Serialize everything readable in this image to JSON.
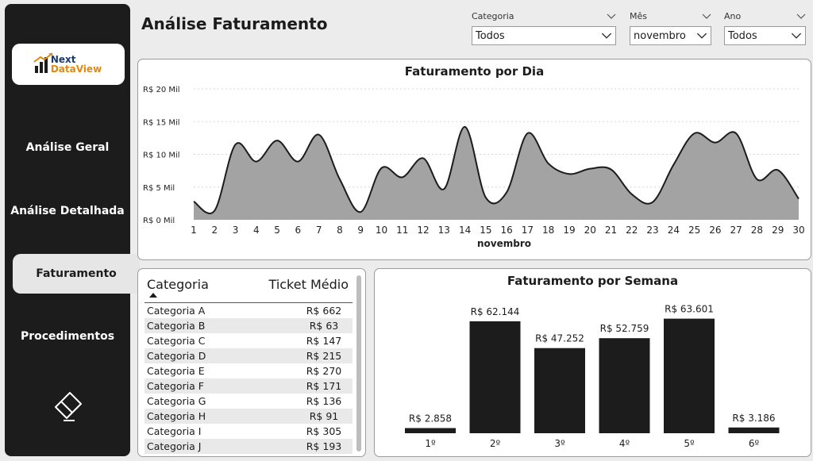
{
  "header": {
    "title": "Análise Faturamento"
  },
  "brand": {
    "line1": "Next",
    "line2": "DataView"
  },
  "sidebar": {
    "items": [
      {
        "label": "Análise Geral",
        "active": false
      },
      {
        "label": "Análise Detalhada",
        "active": false
      },
      {
        "label": "Faturamento",
        "active": true
      },
      {
        "label": "Procedimentos",
        "active": false
      }
    ],
    "eraser_icon": "eraser-icon"
  },
  "filters": {
    "categoria": {
      "label": "Categoria",
      "value": "Todos"
    },
    "mes": {
      "label": "Mês",
      "value": "novembro"
    },
    "ano": {
      "label": "Ano",
      "value": "Todos"
    }
  },
  "table": {
    "headers": [
      "Categoria",
      "Ticket Médio"
    ],
    "rows": [
      {
        "categoria": "Categoria A",
        "ticket": "R$ 662"
      },
      {
        "categoria": "Categoria B",
        "ticket": "R$ 63"
      },
      {
        "categoria": "Categoria C",
        "ticket": "R$ 147"
      },
      {
        "categoria": "Categoria D",
        "ticket": "R$ 215"
      },
      {
        "categoria": "Categoria E",
        "ticket": "R$ 270"
      },
      {
        "categoria": "Categoria F",
        "ticket": "R$ 171"
      },
      {
        "categoria": "Categoria G",
        "ticket": "R$ 136"
      },
      {
        "categoria": "Categoria H",
        "ticket": "R$ 91"
      },
      {
        "categoria": "Categoria I",
        "ticket": "R$ 305"
      },
      {
        "categoria": "Categoria J",
        "ticket": "R$ 193"
      }
    ]
  },
  "chart_data": [
    {
      "type": "area",
      "title": "Faturamento por Dia",
      "xlabel": "novembro",
      "ylabel": "",
      "x": [
        1,
        2,
        3,
        4,
        5,
        6,
        7,
        8,
        9,
        10,
        11,
        12,
        13,
        14,
        15,
        16,
        17,
        18,
        19,
        20,
        21,
        22,
        23,
        24,
        25,
        26,
        27,
        28,
        29,
        30
      ],
      "values": [
        2800,
        1400,
        11500,
        8900,
        12100,
        8900,
        13000,
        6200,
        1200,
        7900,
        6500,
        9400,
        4700,
        14200,
        3400,
        4200,
        13200,
        8600,
        7000,
        7800,
        7700,
        3900,
        2700,
        8400,
        13200,
        11800,
        13200,
        6200,
        7600,
        3200
      ],
      "yticks": [
        "R$ 0 Mil",
        "R$ 5 Mil",
        "R$ 10 Mil",
        "R$ 15 Mil",
        "R$ 20 Mil"
      ],
      "ylim": [
        0,
        20000
      ],
      "colors": {
        "fill": "#a3a3a3",
        "line": "#1c1c1c"
      }
    },
    {
      "type": "bar",
      "title": "Faturamento por Semana",
      "categories": [
        "1º",
        "2º",
        "3º",
        "4º",
        "5º",
        "6º"
      ],
      "values": [
        2858,
        62144,
        47252,
        52759,
        63601,
        3186
      ],
      "labels": [
        "R$ 2.858",
        "R$ 62.144",
        "R$ 47.252",
        "R$ 52.759",
        "R$ 63.601",
        "R$ 3.186"
      ],
      "colors": {
        "bar": "#1c1c1c"
      }
    }
  ]
}
